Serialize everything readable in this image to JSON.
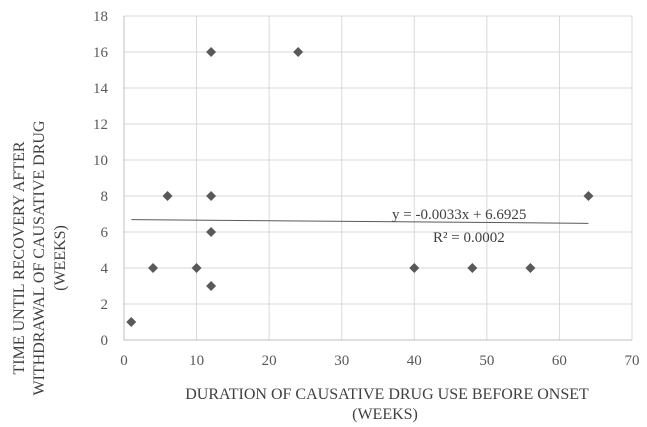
{
  "chart_data": {
    "type": "scatter",
    "xlabel_line1": "DURATION  OF CAUSATIVE  DRUG  USE  BEFORE  ONSET",
    "xlabel_line2": "(WEEKS)",
    "ylabel_line1": "TIME UNTIL RECOVERY AFTER",
    "ylabel_line2": "WITHDRAWAL  OF CAUSATIVE DRUG",
    "ylabel_line3": "(WEEKS)",
    "xlim": [
      0,
      70
    ],
    "ylim": [
      0,
      18
    ],
    "x_ticks": [
      0,
      10,
      20,
      30,
      40,
      50,
      60,
      70
    ],
    "y_ticks": [
      0,
      2,
      4,
      6,
      8,
      10,
      12,
      14,
      16,
      18
    ],
    "grid": true,
    "marker": "diamond",
    "point_color": "#595959",
    "points": [
      {
        "x": 1,
        "y": 1
      },
      {
        "x": 4,
        "y": 4
      },
      {
        "x": 6,
        "y": 8
      },
      {
        "x": 10,
        "y": 4
      },
      {
        "x": 12,
        "y": 16
      },
      {
        "x": 12,
        "y": 8
      },
      {
        "x": 12,
        "y": 6
      },
      {
        "x": 12,
        "y": 3
      },
      {
        "x": 24,
        "y": 16
      },
      {
        "x": 40,
        "y": 4
      },
      {
        "x": 48,
        "y": 4
      },
      {
        "x": 56,
        "y": 4
      },
      {
        "x": 64,
        "y": 8
      }
    ],
    "trendline": {
      "slope": -0.0033,
      "intercept": 6.6925,
      "x_range": [
        1,
        64
      ],
      "equation": "y = -0.0033x + 6.6925",
      "r_squared": "R² = 0.0002"
    }
  }
}
